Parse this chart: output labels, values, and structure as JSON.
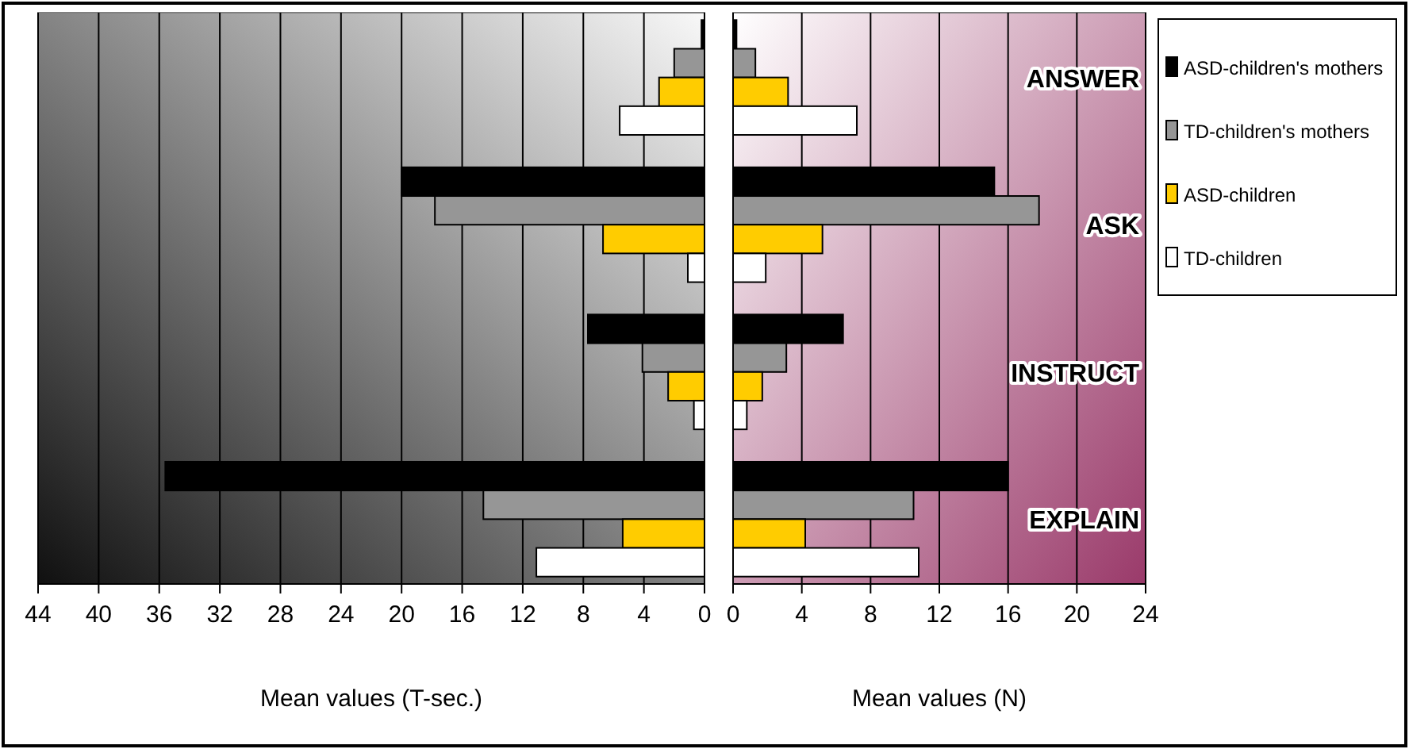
{
  "chart_data": [
    {
      "type": "bar",
      "orientation": "horizontal",
      "categories": [
        null,
        null,
        null,
        null
      ],
      "xlabel": "Mean values (T-sec.)",
      "xlim": [
        44,
        0
      ],
      "xticks": [
        44,
        40,
        36,
        32,
        28,
        24,
        20,
        16,
        12,
        8,
        4,
        0
      ],
      "grid": "x",
      "series": [
        {
          "color": "#000000",
          "values": [
            0.2,
            20.0,
            7.7,
            35.6
          ]
        },
        {
          "color": "#969696",
          "values": [
            2.0,
            17.8,
            4.1,
            14.6
          ]
        },
        {
          "color": "#ffcc00",
          "values": [
            3.0,
            6.7,
            2.4,
            5.4
          ]
        },
        {
          "color": "#ffffff",
          "values": [
            5.6,
            1.1,
            0.7,
            11.1
          ]
        }
      ]
    },
    {
      "type": "bar",
      "orientation": "horizontal",
      "categories": [
        "ANSWER",
        "ASK",
        "INSTRUCT",
        "EXPLAIN"
      ],
      "xlabel": "Mean values (N)",
      "xlim": [
        0,
        24
      ],
      "xticks": [
        0,
        4,
        8,
        12,
        16,
        20,
        24
      ],
      "grid": "x",
      "legend": "right",
      "series": [
        {
          "name": "ASD-children's mothers",
          "color": "#000000",
          "values": [
            0.2,
            15.2,
            6.4,
            16.0
          ]
        },
        {
          "name": "TD-children's mothers",
          "color": "#969696",
          "values": [
            1.3,
            17.8,
            3.1,
            10.5
          ]
        },
        {
          "name": "ASD-children",
          "color": "#ffcc00",
          "values": [
            3.2,
            5.2,
            1.7,
            4.2
          ]
        },
        {
          "name": "TD-children",
          "color": "#ffffff",
          "values": [
            7.2,
            1.9,
            0.8,
            10.8
          ]
        }
      ]
    }
  ]
}
